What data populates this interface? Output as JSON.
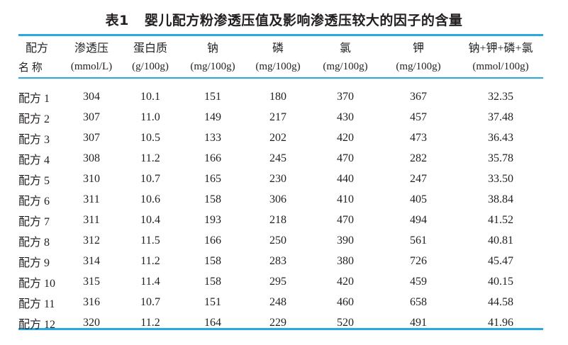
{
  "title": {
    "number": "表1",
    "text": "婴儿配方粉渗透压值及影响渗透压较大的因子的含量"
  },
  "colors": {
    "rule": "#29a9e0",
    "text": "#231f20"
  },
  "table": {
    "headers": [
      {
        "name": "配方",
        "unit": "名 称"
      },
      {
        "name": "渗透压",
        "unit": "(mmol/L)"
      },
      {
        "name": "蛋白质",
        "unit": "(g/100g)"
      },
      {
        "name": "钠",
        "unit": "(mg/100g)"
      },
      {
        "name": "磷",
        "unit": "(mg/100g)"
      },
      {
        "name": "氯",
        "unit": "(mg/100g)"
      },
      {
        "name": "钾",
        "unit": "(mg/100g)"
      },
      {
        "name": "钠+钾+磷+氯",
        "unit": "(mmol/100g)"
      }
    ],
    "rows": [
      [
        "配方 1",
        "304",
        "10.1",
        "151",
        "180",
        "370",
        "367",
        "32.35"
      ],
      [
        "配方 2",
        "307",
        "11.0",
        "149",
        "217",
        "430",
        "457",
        "37.48"
      ],
      [
        "配方 3",
        "307",
        "10.5",
        "133",
        "202",
        "420",
        "473",
        "36.43"
      ],
      [
        "配方 4",
        "308",
        "11.2",
        "166",
        "245",
        "470",
        "282",
        "35.78"
      ],
      [
        "配方 5",
        "310",
        "10.7",
        "165",
        "230",
        "440",
        "247",
        "33.50"
      ],
      [
        "配方 6",
        "311",
        "10.6",
        "158",
        "306",
        "410",
        "405",
        "38.84"
      ],
      [
        "配方 7",
        "311",
        "10.4",
        "193",
        "218",
        "470",
        "494",
        "41.52"
      ],
      [
        "配方 8",
        "312",
        "11.5",
        "166",
        "250",
        "390",
        "561",
        "40.81"
      ],
      [
        "配方 9",
        "314",
        "11.2",
        "158",
        "283",
        "380",
        "726",
        "45.47"
      ],
      [
        "配方 10",
        "315",
        "11.4",
        "158",
        "295",
        "420",
        "459",
        "40.15"
      ],
      [
        "配方 11",
        "316",
        "10.7",
        "151",
        "248",
        "460",
        "658",
        "44.58"
      ],
      [
        "配方 12",
        "320",
        "11.2",
        "164",
        "229",
        "520",
        "491",
        "41.96"
      ]
    ]
  }
}
